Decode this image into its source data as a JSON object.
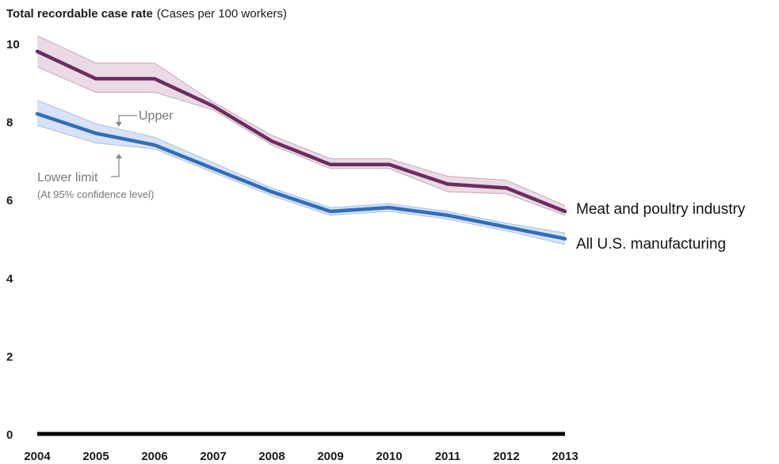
{
  "chart_data": {
    "type": "line",
    "title_bold": "Total recordable case rate",
    "title_rest": "(Cases per 100 workers)",
    "x": [
      "2004",
      "2005",
      "2006",
      "2007",
      "2008",
      "2009",
      "2010",
      "2011",
      "2012",
      "2013"
    ],
    "ylim": [
      0,
      10
    ],
    "yticks": [
      "0",
      "2",
      "4",
      "6",
      "8",
      "10"
    ],
    "grid": false,
    "series": [
      {
        "name": "Meat and poultry industry",
        "color": "#6b2d5e",
        "band_color": "#e6d3e2",
        "values": [
          9.8,
          9.1,
          9.1,
          8.4,
          7.5,
          6.9,
          6.9,
          6.4,
          6.3,
          5.7
        ],
        "upper": [
          10.2,
          9.5,
          9.5,
          8.5,
          7.65,
          7.05,
          7.05,
          6.6,
          6.5,
          5.85
        ],
        "lower": [
          9.4,
          8.75,
          8.75,
          8.3,
          7.4,
          6.8,
          6.8,
          6.2,
          6.15,
          5.6
        ]
      },
      {
        "name": "All U.S. manufacturing",
        "color": "#2f6fba",
        "band_color": "#d2dcf2",
        "values": [
          8.2,
          7.7,
          7.4,
          6.8,
          6.2,
          5.7,
          5.8,
          5.6,
          5.3,
          5.0
        ],
        "upper": [
          8.55,
          7.95,
          7.6,
          6.95,
          6.3,
          5.8,
          5.9,
          5.7,
          5.4,
          5.15
        ],
        "lower": [
          7.9,
          7.45,
          7.3,
          6.7,
          6.1,
          5.6,
          5.7,
          5.5,
          5.2,
          4.85
        ]
      }
    ],
    "annotations": {
      "upper": "Upper",
      "lower": "Lower limit",
      "note": "(At 95% confidence level)"
    }
  }
}
